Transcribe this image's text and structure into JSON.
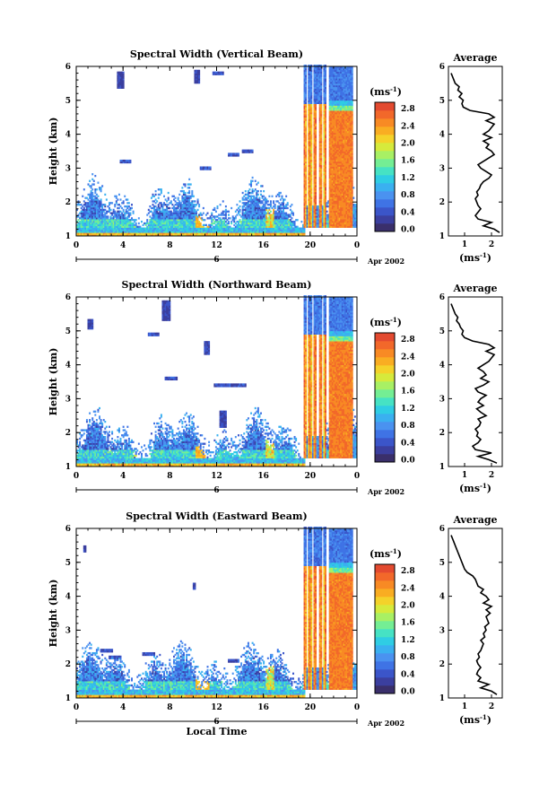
{
  "figure": {
    "xlabel": "Local Time"
  },
  "colorbar": {
    "unit_label": "(ms",
    "unit_exp": "-1",
    "unit_close": ")",
    "ticks": [
      "0.0",
      "0.4",
      "0.8",
      "1.2",
      "1.6",
      "2.0",
      "2.4",
      "2.8"
    ],
    "range": [
      0.0,
      3.0
    ],
    "colors": [
      "#3a2f6b",
      "#3b3f9f",
      "#3b55c9",
      "#3f73e5",
      "#4a92f0",
      "#3ab0f0",
      "#2fcde4",
      "#46e2c4",
      "#74ee94",
      "#a8f064",
      "#d6ea3c",
      "#f4d22a",
      "#f9ad22",
      "#f88a24",
      "#f2682a",
      "#e34a30"
    ]
  },
  "chart_data": [
    {
      "type": "heatmap",
      "title": "Spectral Width (Vertical Beam)",
      "xlabel": "",
      "ylabel": "Height (km)",
      "x_range": [
        0,
        24
      ],
      "y_range": [
        1,
        6
      ],
      "x_ticks": [
        "0",
        "4",
        "8",
        "12",
        "16",
        "20",
        "0"
      ],
      "y_ticks": [
        "1",
        "2",
        "3",
        "4",
        "5",
        "6"
      ],
      "date_start": "6",
      "date_end": "Apr 2002",
      "seed": 11,
      "blobs": [
        [
          3.8,
          5.6,
          0.3
        ],
        [
          10.3,
          5.7,
          0.25
        ]
      ],
      "noise_cells": [
        [
          4.2,
          3.2
        ],
        [
          13.4,
          3.4
        ],
        [
          14.6,
          3.5
        ],
        [
          12.1,
          5.8
        ],
        [
          11.0,
          3.0
        ]
      ],
      "average": {
        "title": "Average",
        "xlabel": "(ms",
        "xlabel_exp": "-1",
        "xlabel_close": ")",
        "x_range": [
          0.4,
          2.4
        ],
        "x_ticks": [
          "1",
          "2"
        ],
        "height": [
          1.1,
          1.2,
          1.3,
          1.4,
          1.5,
          1.6,
          1.7,
          1.8,
          1.9,
          2.0,
          2.1,
          2.2,
          2.3,
          2.4,
          2.5,
          2.6,
          2.7,
          2.8,
          2.9,
          3.0,
          3.1,
          3.2,
          3.3,
          3.4,
          3.5,
          3.6,
          3.7,
          3.8,
          3.9,
          4.0,
          4.1,
          4.2,
          4.3,
          4.4,
          4.5,
          4.6,
          4.7,
          4.8,
          4.9,
          5.0,
          5.1,
          5.2,
          5.3,
          5.4,
          5.5,
          5.6,
          5.7,
          5.8
        ],
        "width": [
          2.3,
          2.1,
          1.7,
          2.0,
          1.5,
          1.4,
          1.5,
          1.6,
          1.5,
          1.45,
          1.4,
          1.5,
          1.45,
          1.55,
          1.6,
          1.7,
          1.9,
          2.0,
          1.8,
          1.6,
          1.5,
          1.7,
          1.9,
          2.1,
          2.0,
          1.8,
          1.9,
          1.7,
          2.0,
          1.7,
          1.9,
          2.0,
          2.1,
          1.8,
          2.1,
          1.9,
          1.2,
          0.95,
          0.9,
          0.95,
          0.8,
          0.9,
          0.75,
          0.8,
          0.65,
          0.6,
          0.55,
          0.5
        ]
      }
    },
    {
      "type": "heatmap",
      "title": "Spectral Width (Northward Beam)",
      "xlabel": "",
      "ylabel": "Height (km)",
      "x_range": [
        0,
        24
      ],
      "y_range": [
        1,
        6
      ],
      "x_ticks": [
        "0",
        "4",
        "8",
        "12",
        "16",
        "20",
        "0"
      ],
      "y_ticks": [
        "1",
        "2",
        "3",
        "4",
        "5",
        "6"
      ],
      "date_start": "6",
      "date_end": "Apr 2002",
      "seed": 23,
      "blobs": [
        [
          7.7,
          5.6,
          0.35
        ],
        [
          11.2,
          4.5,
          0.25
        ],
        [
          12.5,
          2.4,
          0.3
        ],
        [
          1.2,
          5.2,
          0.2
        ]
      ],
      "noise_cells": [
        [
          12.2,
          3.4
        ],
        [
          13.1,
          3.4
        ],
        [
          14.0,
          3.4
        ],
        [
          6.6,
          4.9
        ],
        [
          8.1,
          3.6
        ]
      ],
      "average": {
        "title": "Average",
        "xlabel": "(ms",
        "xlabel_exp": "-1",
        "xlabel_close": ")",
        "x_range": [
          0.4,
          2.4
        ],
        "x_ticks": [
          "1",
          "2"
        ],
        "height": [
          1.1,
          1.2,
          1.3,
          1.4,
          1.5,
          1.6,
          1.7,
          1.8,
          1.9,
          2.0,
          2.1,
          2.2,
          2.3,
          2.4,
          2.5,
          2.6,
          2.7,
          2.8,
          2.9,
          3.0,
          3.1,
          3.2,
          3.3,
          3.4,
          3.5,
          3.6,
          3.7,
          3.8,
          3.9,
          4.0,
          4.1,
          4.2,
          4.3,
          4.4,
          4.5,
          4.6,
          4.7,
          4.8,
          4.9,
          5.0,
          5.1,
          5.2,
          5.3,
          5.4,
          5.5,
          5.6,
          5.7,
          5.8
        ],
        "width": [
          2.2,
          1.9,
          1.5,
          2.0,
          1.4,
          1.3,
          1.5,
          1.6,
          1.45,
          1.5,
          1.4,
          1.55,
          1.6,
          1.5,
          1.8,
          1.6,
          1.45,
          1.7,
          1.5,
          1.6,
          1.8,
          1.5,
          1.4,
          1.7,
          1.9,
          1.6,
          1.8,
          1.7,
          1.5,
          1.7,
          1.9,
          2.0,
          2.1,
          1.8,
          2.1,
          1.9,
          1.3,
          1.0,
          0.9,
          0.95,
          0.85,
          0.8,
          0.7,
          0.75,
          0.65,
          0.6,
          0.55,
          0.5
        ]
      }
    },
    {
      "type": "heatmap",
      "title": "Spectral Width (Eastward Beam)",
      "xlabel": "Local Time",
      "ylabel": "Height (km)",
      "x_range": [
        0,
        24
      ],
      "y_range": [
        1,
        6
      ],
      "x_ticks": [
        "0",
        "4",
        "8",
        "12",
        "16",
        "20",
        "0"
      ],
      "y_ticks": [
        "1",
        "2",
        "3",
        "4",
        "5",
        "6"
      ],
      "date_start": "6",
      "date_end": "Apr 2002",
      "seed": 37,
      "blobs": [
        [
          0.7,
          5.4,
          0.15
        ],
        [
          10.1,
          4.3,
          0.15
        ]
      ],
      "noise_cells": [
        [
          2.6,
          2.4
        ],
        [
          3.3,
          2.2
        ],
        [
          6.2,
          2.3
        ],
        [
          13.4,
          2.1
        ],
        [
          9.0,
          2.0
        ]
      ],
      "average": {
        "title": "Average",
        "xlabel": "(ms",
        "xlabel_exp": "-1",
        "xlabel_close": ")",
        "x_range": [
          0.4,
          2.4
        ],
        "x_ticks": [
          "1",
          "2"
        ],
        "height": [
          1.1,
          1.2,
          1.3,
          1.4,
          1.5,
          1.6,
          1.7,
          1.8,
          1.9,
          2.0,
          2.1,
          2.2,
          2.3,
          2.4,
          2.5,
          2.6,
          2.7,
          2.8,
          2.9,
          3.0,
          3.1,
          3.2,
          3.3,
          3.4,
          3.5,
          3.6,
          3.7,
          3.8,
          3.9,
          4.0,
          4.1,
          4.2,
          4.3,
          4.4,
          4.5,
          4.6,
          4.7,
          4.8,
          4.9,
          5.0,
          5.1,
          5.2,
          5.3,
          5.4,
          5.5,
          5.6,
          5.7,
          5.8
        ],
        "width": [
          2.2,
          2.0,
          1.6,
          1.9,
          1.5,
          1.6,
          1.45,
          1.5,
          1.6,
          1.5,
          1.45,
          1.55,
          1.5,
          1.6,
          1.65,
          1.7,
          1.6,
          1.75,
          1.7,
          1.8,
          1.75,
          1.9,
          1.85,
          1.8,
          1.95,
          1.8,
          2.0,
          1.7,
          1.9,
          1.8,
          1.6,
          1.7,
          1.5,
          1.45,
          1.4,
          1.3,
          1.1,
          1.0,
          0.95,
          0.9,
          0.85,
          0.8,
          0.75,
          0.7,
          0.65,
          0.6,
          0.55,
          0.5
        ]
      }
    }
  ]
}
